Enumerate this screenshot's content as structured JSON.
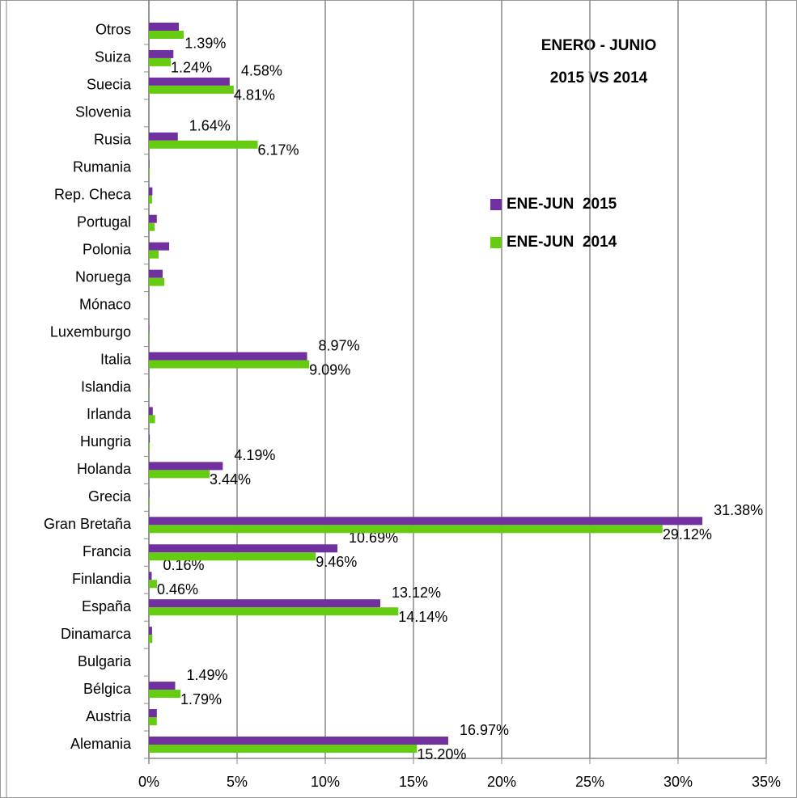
{
  "chart_data": {
    "type": "hbar",
    "title": [
      "ENERO - JUNIO",
      "2015 VS 2014"
    ],
    "categories": [
      "Alemania",
      "Austria",
      "Bélgica",
      "Bulgaria",
      "Dinamarca",
      "España",
      "Finlandia",
      "Francia",
      "Gran Bretaña",
      "Grecia",
      "Holanda",
      "Hungria",
      "Irlanda",
      "Islandia",
      "Italia",
      "Luxemburgo",
      "Mónaco",
      "Noruega",
      "Polonia",
      "Portugal",
      "Rep. Checa",
      "Rumania",
      "Rusia",
      "Slovenia",
      "Suecia",
      "Suiza",
      "Otros"
    ],
    "series": [
      {
        "name": "ENE-JUN  2015",
        "color": "#7030a0",
        "values": [
          16.97,
          0.45,
          1.49,
          0,
          0.18,
          13.12,
          0.16,
          10.69,
          31.38,
          0.03,
          4.19,
          0.05,
          0.22,
          0.02,
          8.97,
          0.02,
          0,
          0.78,
          1.15,
          0.45,
          0.2,
          0.03,
          1.64,
          0,
          4.58,
          1.39,
          1.7
        ],
        "value_labels": [
          "16.97%",
          null,
          "1.49%",
          null,
          null,
          "13.12%",
          "0.16%",
          "10.69%",
          "31.38%",
          null,
          "4.19%",
          null,
          null,
          null,
          "8.97%",
          null,
          null,
          null,
          null,
          null,
          null,
          null,
          "1.64%",
          null,
          "4.58%",
          "1.39%",
          null
        ]
      },
      {
        "name": "ENE-JUN  2014",
        "color": "#66cc11",
        "values": [
          15.2,
          0.45,
          1.79,
          0,
          0.2,
          14.14,
          0.46,
          9.46,
          29.12,
          0.05,
          3.44,
          0.05,
          0.35,
          0.03,
          9.09,
          0.04,
          0,
          0.87,
          0.55,
          0.32,
          0.18,
          0.05,
          6.17,
          0,
          4.81,
          1.24,
          1.97
        ],
        "value_labels": [
          "15.20%",
          null,
          "1.79%",
          null,
          null,
          "14.14%",
          "0.46%",
          "9.46%",
          "29.12%",
          null,
          "3.44%",
          null,
          null,
          null,
          "9.09%",
          null,
          null,
          null,
          null,
          null,
          null,
          null,
          "6.17%",
          null,
          "4.81%",
          "1.24%",
          null
        ]
      }
    ],
    "xlim": [
      0,
      35
    ],
    "xticks": [
      {
        "value": 0,
        "label": "0%"
      },
      {
        "value": 5,
        "label": "5%"
      },
      {
        "value": 10,
        "label": "10%"
      },
      {
        "value": 15,
        "label": "15%"
      },
      {
        "value": 20,
        "label": "20%"
      },
      {
        "value": 25,
        "label": "25%"
      },
      {
        "value": 30,
        "label": "30%"
      },
      {
        "value": 35,
        "label": "35%"
      }
    ],
    "grid": true
  }
}
